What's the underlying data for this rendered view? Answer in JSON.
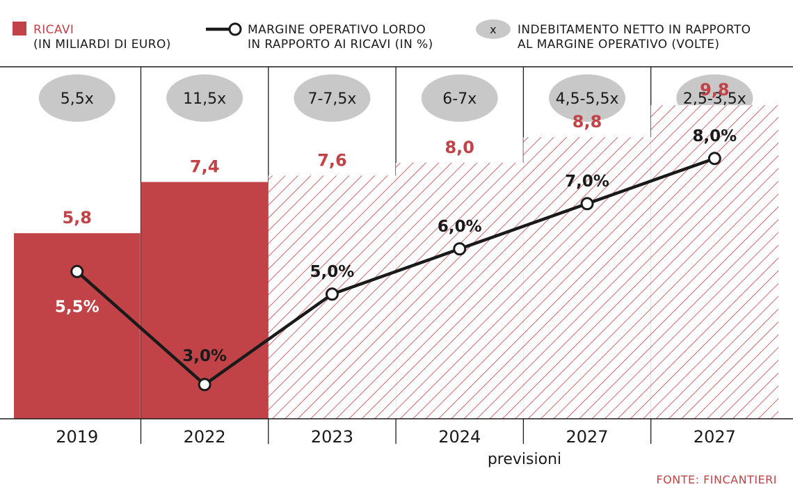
{
  "legend": {
    "revenue_line1": "RICAVI",
    "revenue_line2": "(IN MILIARDI DI EURO)",
    "margin_line1": "MARGINE OPERATIVO LORDO",
    "margin_line2": "IN RAPPORTO AI RICAVI (IN %)",
    "debt_symbol": "x",
    "debt_line1": "INDEBITAMENTO NETTO IN RAPPORTO",
    "debt_line2": "AL MARGINE OPERATIVO (VOLTE)"
  },
  "colors": {
    "revenue": "#c24347",
    "line": "#1a1a1a",
    "pill": "#c8c8c8"
  },
  "forecast_note": "previsioni",
  "source": "FONTE: FINCANTIERI",
  "chart_data": {
    "type": "bar",
    "categories": [
      "2019",
      "2022",
      "2023",
      "2024",
      "2027",
      "2027"
    ],
    "forecast": [
      false,
      false,
      true,
      true,
      true,
      true
    ],
    "series": [
      {
        "name": "RICAVI (IN MILIARDI DI EURO)",
        "values": [
          5.8,
          7.4,
          7.6,
          8.0,
          8.8,
          9.8
        ],
        "labels": [
          "5,8",
          "7,4",
          "7,6",
          "8,0",
          "8,8",
          "9,8"
        ]
      },
      {
        "name": "MARGINE OPERATIVO LORDO IN RAPPORTO AI RICAVI (IN %)",
        "type": "line",
        "values": [
          5.5,
          3.0,
          5.0,
          6.0,
          7.0,
          8.0
        ],
        "labels": [
          "5,5%",
          "3,0%",
          "5,0%",
          "6,0%",
          "7,0%",
          "8,0%"
        ]
      },
      {
        "name": "INDEBITAMENTO NETTO IN RAPPORTO AL MARGINE OPERATIVO (VOLTE)",
        "labels": [
          "5,5x",
          "11,5x",
          "7-7,5x",
          "6-7x",
          "4,5-5,5x",
          "2,5-3,5x"
        ]
      }
    ],
    "revenue_axis": [
      0,
      11.5
    ],
    "margin_axis": [
      0,
      15.5
    ],
    "grid": false,
    "legend_position": "top"
  }
}
